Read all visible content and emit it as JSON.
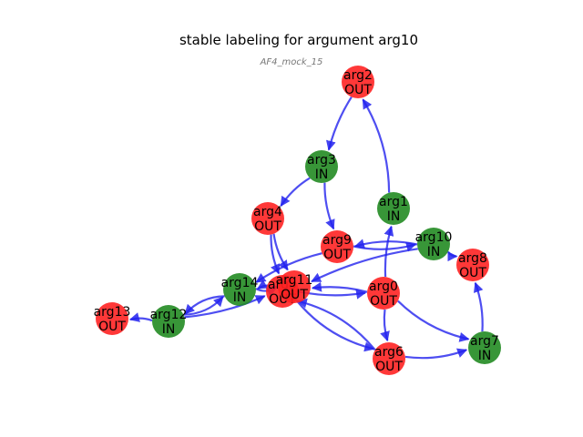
{
  "title": "stable labeling for argument arg10",
  "subtitle": "AF4_mock_15",
  "colors": {
    "in": "#228b22",
    "out": "#ff2222",
    "edge": "#2222ee"
  },
  "nodes": [
    {
      "id": "arg2",
      "name": "arg2",
      "label": "OUT"
    },
    {
      "id": "arg3",
      "name": "arg3",
      "label": "IN"
    },
    {
      "id": "arg1",
      "name": "arg1",
      "label": "IN"
    },
    {
      "id": "arg4",
      "name": "arg4",
      "label": "OUT"
    },
    {
      "id": "arg9",
      "name": "arg9",
      "label": "OUT"
    },
    {
      "id": "arg10",
      "name": "arg10",
      "label": "IN"
    },
    {
      "id": "arg8",
      "name": "arg8",
      "label": "OUT"
    },
    {
      "id": "arg14",
      "name": "arg14",
      "label": "IN"
    },
    {
      "id": "arg5",
      "name": "arg5",
      "label": "OUT"
    },
    {
      "id": "arg11",
      "name": "arg11",
      "label": "OUT"
    },
    {
      "id": "arg0",
      "name": "arg0",
      "label": "OUT"
    },
    {
      "id": "arg13",
      "name": "arg13",
      "label": "OUT"
    },
    {
      "id": "arg12",
      "name": "arg12",
      "label": "IN"
    },
    {
      "id": "arg6",
      "name": "arg6",
      "label": "OUT"
    },
    {
      "id": "arg7",
      "name": "arg7",
      "label": "IN"
    }
  ],
  "edges": [
    {
      "from": "arg2",
      "to": "arg3"
    },
    {
      "from": "arg1",
      "to": "arg2"
    },
    {
      "from": "arg3",
      "to": "arg4"
    },
    {
      "from": "arg3",
      "to": "arg9"
    },
    {
      "from": "arg4",
      "to": "arg5"
    },
    {
      "from": "arg4",
      "to": "arg11"
    },
    {
      "from": "arg9",
      "to": "arg14"
    },
    {
      "from": "arg9",
      "to": "arg10"
    },
    {
      "from": "arg10",
      "to": "arg9"
    },
    {
      "from": "arg10",
      "to": "arg8"
    },
    {
      "from": "arg10",
      "to": "arg11"
    },
    {
      "from": "arg0",
      "to": "arg1"
    },
    {
      "from": "arg0",
      "to": "arg6"
    },
    {
      "from": "arg0",
      "to": "arg7"
    },
    {
      "from": "arg0",
      "to": "arg11"
    },
    {
      "from": "arg5",
      "to": "arg0"
    },
    {
      "from": "arg5",
      "to": "arg6"
    },
    {
      "from": "arg6",
      "to": "arg5"
    },
    {
      "from": "arg6",
      "to": "arg7"
    },
    {
      "from": "arg7",
      "to": "arg8"
    },
    {
      "from": "arg12",
      "to": "arg13"
    },
    {
      "from": "arg12",
      "to": "arg14"
    },
    {
      "from": "arg12",
      "to": "arg5"
    },
    {
      "from": "arg14",
      "to": "arg12"
    },
    {
      "from": "arg14",
      "to": "arg11"
    },
    {
      "from": "arg11",
      "to": "arg14"
    }
  ]
}
